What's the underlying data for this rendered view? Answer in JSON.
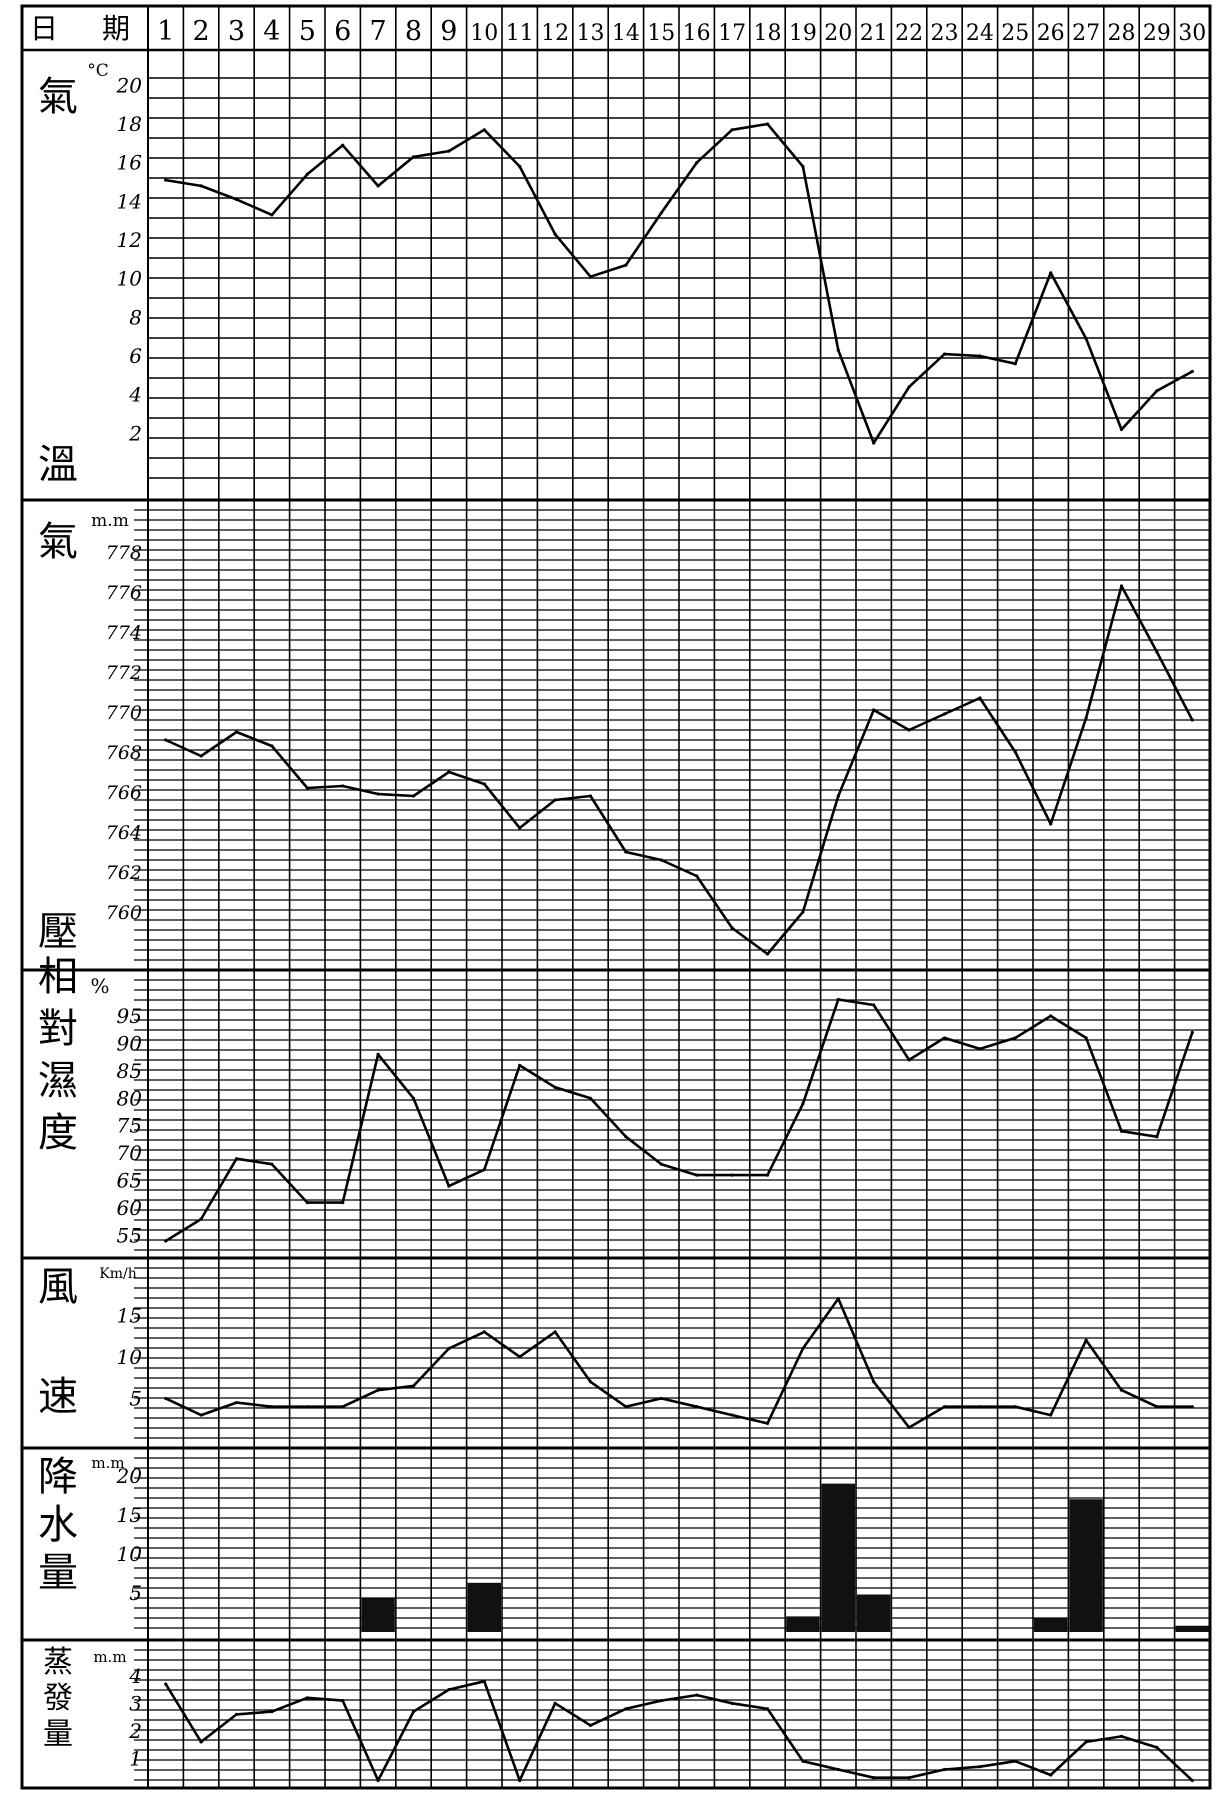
{
  "header": {
    "day_label": "日",
    "period_label": "期"
  },
  "days": [
    "1",
    "2",
    "3",
    "4",
    "5",
    "6",
    "7",
    "8",
    "9",
    "10",
    "11",
    "12",
    "13",
    "14",
    "15",
    "16",
    "17",
    "18",
    "19",
    "20",
    "21",
    "22",
    "23",
    "24",
    "25",
    "26",
    "27",
    "28",
    "29",
    "30"
  ],
  "panels": {
    "temperature": {
      "label_top": "氣",
      "label_bottom": "溫",
      "unit": "°C",
      "ticks": [
        "20",
        "18",
        "16",
        "14",
        "12",
        "10",
        "8",
        "6",
        "4",
        "2"
      ]
    },
    "pressure": {
      "label_top": "氣",
      "label_bottom": "壓",
      "unit": "m.m",
      "ticks": [
        "778",
        "776",
        "774",
        "772",
        "770",
        "768",
        "766",
        "764",
        "762",
        "760"
      ]
    },
    "humidity": {
      "label": "相對濕度",
      "unit": "%",
      "ticks": [
        "95",
        "90",
        "85",
        "80",
        "75",
        "70",
        "65",
        "60",
        "55"
      ]
    },
    "wind": {
      "label": "風速",
      "unit": "Km/h",
      "ticks": [
        "15",
        "10",
        "5"
      ]
    },
    "precipitation": {
      "label": "降水量",
      "unit": "m.m",
      "ticks": [
        "20",
        "15",
        "10",
        "5"
      ]
    },
    "evaporation": {
      "label": "蒸發量",
      "unit": "m.m",
      "ticks": [
        "4",
        "3",
        "2",
        "1"
      ]
    }
  },
  "chart_data": {
    "type": "line",
    "x": [
      1,
      2,
      3,
      4,
      5,
      6,
      7,
      8,
      9,
      10,
      11,
      12,
      13,
      14,
      15,
      16,
      17,
      18,
      19,
      20,
      21,
      22,
      23,
      24,
      25,
      26,
      27,
      28,
      29,
      30
    ],
    "series": [
      {
        "name": "氣溫",
        "ylim": [
          0,
          21
        ],
        "values": [
          15.1,
          14.8,
          14.1,
          13.3,
          15.4,
          16.9,
          14.8,
          16.3,
          16.6,
          17.7,
          15.8,
          12.3,
          10.1,
          10.7,
          13.4,
          16.0,
          17.7,
          18.0,
          15.8,
          6.3,
          1.5,
          4.4,
          6.1,
          6.0,
          5.6,
          10.3,
          6.9,
          2.2,
          4.2,
          5.2
        ]
      },
      {
        "name": "氣壓",
        "ylim": [
          757.5,
          779.5
        ],
        "values": [
          768.6,
          767.8,
          769.0,
          768.3,
          766.2,
          766.3,
          765.9,
          765.8,
          767.0,
          766.4,
          764.2,
          765.6,
          765.8,
          763.0,
          762.6,
          761.8,
          759.2,
          757.9,
          760.0,
          765.8,
          770.1,
          769.1,
          769.9,
          770.7,
          768.0,
          764.4,
          769.7,
          776.3,
          773.0,
          769.6
        ]
      },
      {
        "name": "相對濕度",
        "ylim": [
          52,
          99
        ],
        "values": [
          54,
          58,
          69,
          68,
          61,
          61,
          88,
          80,
          64,
          67,
          86,
          82,
          80,
          73,
          68,
          66,
          66,
          66,
          79,
          98,
          97,
          87,
          91,
          89,
          91,
          95,
          91,
          74,
          73,
          92
        ]
      },
      {
        "name": "風速",
        "ylim": [
          0,
          19
        ],
        "values": [
          5,
          3,
          4.5,
          4,
          4,
          4,
          6,
          6.5,
          11,
          13,
          10,
          13,
          7,
          4,
          5,
          4,
          3,
          2,
          11,
          17,
          7,
          1.5,
          4,
          4,
          4,
          3,
          12,
          6,
          4,
          4
        ]
      },
      {
        "name": "降水量",
        "type": "bar",
        "ylim": [
          0,
          21
        ],
        "values": [
          0,
          0,
          0,
          0,
          0,
          0,
          4.3,
          0,
          0,
          6.3,
          0,
          0,
          0,
          0,
          0,
          0,
          0,
          0,
          2.0,
          19.0,
          4.8,
          0,
          0,
          0,
          0,
          1.8,
          17.0,
          0,
          0,
          0.8
        ]
      },
      {
        "name": "蒸發量",
        "ylim": [
          0,
          4.5
        ],
        "values": [
          3.7,
          1.6,
          2.6,
          2.7,
          3.2,
          3.1,
          0.2,
          2.7,
          3.5,
          3.8,
          0.2,
          3.0,
          2.2,
          2.8,
          3.1,
          3.3,
          3.0,
          2.8,
          0.9,
          0.6,
          0.3,
          0.3,
          0.6,
          0.7,
          0.9,
          0.4,
          1.6,
          1.8,
          1.4,
          0.2
        ]
      }
    ]
  }
}
